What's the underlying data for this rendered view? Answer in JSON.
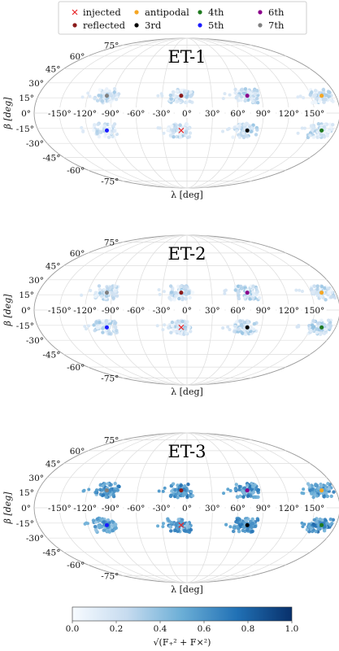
{
  "legend": {
    "position": "top-center",
    "entries": [
      {
        "label": "injected",
        "marker": "x",
        "color": "#e8262a"
      },
      {
        "label": "reflected",
        "marker": "dot",
        "color": "#8b1a1a"
      },
      {
        "label": "antipodal",
        "marker": "dot",
        "color": "#f5a623"
      },
      {
        "label": "3rd",
        "marker": "dot",
        "color": "#000000"
      },
      {
        "label": "4th",
        "marker": "dot",
        "color": "#1f7a1f"
      },
      {
        "label": "5th",
        "marker": "dot",
        "color": "#1a1aff"
      },
      {
        "label": "6th",
        "marker": "dot",
        "color": "#8b008b"
      },
      {
        "label": "7th",
        "marker": "dot",
        "color": "#808080"
      }
    ]
  },
  "colorbar": {
    "label": "√(F₊² + F×²)",
    "ticks": [
      "0.0",
      "0.2",
      "0.4",
      "0.6",
      "0.8",
      "1.0"
    ],
    "range": [
      0,
      1
    ],
    "colormap": [
      "#f7fbff",
      "#c6dbef",
      "#6baed6",
      "#2171b5",
      "#08306b"
    ]
  },
  "chart_data": [
    {
      "type": "scatter",
      "projection": "mollweide",
      "title": "ET-1",
      "xlabel": "λ [deg]",
      "ylabel": "β [deg]",
      "xlim": [
        -180,
        180
      ],
      "ylim": [
        -90,
        90
      ],
      "grid": true,
      "lon_ticks": [
        "-150°",
        "-120°",
        "-90°",
        "-60°",
        "-30°",
        "0°",
        "30°",
        "60°",
        "90°",
        "120°",
        "150°"
      ],
      "lat_ticks": [
        "75°",
        "60°",
        "45°",
        "30°",
        "15°",
        "0°",
        "-15°",
        "-30°",
        "-45°",
        "-60°",
        "-75°"
      ],
      "marked_points": [
        {
          "name": "injected",
          "lon": -7,
          "lat": -17
        },
        {
          "name": "reflected",
          "lon": -7,
          "lat": 17
        },
        {
          "name": "antipodal",
          "lon": 163,
          "lat": 17
        },
        {
          "name": "3rd",
          "lon": 73,
          "lat": -17
        },
        {
          "name": "4th",
          "lon": 163,
          "lat": -17
        },
        {
          "name": "5th",
          "lon": -97,
          "lat": -17
        },
        {
          "name": "6th",
          "lon": 73,
          "lat": 17
        },
        {
          "name": "7th",
          "lon": -97,
          "lat": 17
        }
      ],
      "clusters": [
        {
          "lon": -97,
          "lat": 17,
          "intensity": 0.18
        },
        {
          "lon": -7,
          "lat": 17,
          "intensity": 0.2
        },
        {
          "lon": 73,
          "lat": 17,
          "intensity": 0.2
        },
        {
          "lon": 163,
          "lat": 17,
          "intensity": 0.18
        },
        {
          "lon": -97,
          "lat": -17,
          "intensity": 0.18
        },
        {
          "lon": -7,
          "lat": -17,
          "intensity": 0.2
        },
        {
          "lon": 73,
          "lat": -17,
          "intensity": 0.2
        },
        {
          "lon": 163,
          "lat": -17,
          "intensity": 0.2
        }
      ]
    },
    {
      "type": "scatter",
      "projection": "mollweide",
      "title": "ET-2",
      "xlabel": "λ [deg]",
      "ylabel": "β [deg]",
      "xlim": [
        -180,
        180
      ],
      "ylim": [
        -90,
        90
      ],
      "grid": true,
      "lon_ticks": [
        "-150°",
        "-120°",
        "-90°",
        "-60°",
        "-30°",
        "0°",
        "30°",
        "60°",
        "90°",
        "120°",
        "150°"
      ],
      "lat_ticks": [
        "75°",
        "60°",
        "45°",
        "30°",
        "15°",
        "0°",
        "-15°",
        "-30°",
        "-45°",
        "-60°",
        "-75°"
      ],
      "marked_points": [
        {
          "name": "injected",
          "lon": -7,
          "lat": -17
        },
        {
          "name": "reflected",
          "lon": -7,
          "lat": 17
        },
        {
          "name": "antipodal",
          "lon": 163,
          "lat": 17
        },
        {
          "name": "3rd",
          "lon": 73,
          "lat": -17
        },
        {
          "name": "4th",
          "lon": 163,
          "lat": -17
        },
        {
          "name": "5th",
          "lon": -97,
          "lat": -17
        },
        {
          "name": "6th",
          "lon": 73,
          "lat": 17
        },
        {
          "name": "7th",
          "lon": -97,
          "lat": 17
        }
      ],
      "clusters": [
        {
          "lon": -97,
          "lat": 17,
          "intensity": 0.2
        },
        {
          "lon": -7,
          "lat": 17,
          "intensity": 0.2
        },
        {
          "lon": 73,
          "lat": 17,
          "intensity": 0.22
        },
        {
          "lon": 163,
          "lat": 17,
          "intensity": 0.2
        },
        {
          "lon": -97,
          "lat": -17,
          "intensity": 0.2
        },
        {
          "lon": -7,
          "lat": -17,
          "intensity": 0.2
        },
        {
          "lon": 73,
          "lat": -17,
          "intensity": 0.22
        },
        {
          "lon": 163,
          "lat": -17,
          "intensity": 0.22
        }
      ]
    },
    {
      "type": "scatter",
      "projection": "mollweide",
      "title": "ET-3",
      "xlabel": "λ [deg]",
      "ylabel": "β [deg]",
      "xlim": [
        -180,
        180
      ],
      "ylim": [
        -90,
        90
      ],
      "grid": true,
      "lon_ticks": [
        "-150°",
        "-120°",
        "-90°",
        "-60°",
        "-30°",
        "0°",
        "30°",
        "60°",
        "90°",
        "120°",
        "150°"
      ],
      "lat_ticks": [
        "75°",
        "60°",
        "45°",
        "30°",
        "15°",
        "0°",
        "-15°",
        "-30°",
        "-45°",
        "-60°",
        "-75°"
      ],
      "marked_points": [
        {
          "name": "injected",
          "lon": -7,
          "lat": -17
        },
        {
          "name": "reflected",
          "lon": -7,
          "lat": 17
        },
        {
          "name": "antipodal",
          "lon": 163,
          "lat": 17
        },
        {
          "name": "3rd",
          "lon": 73,
          "lat": -17
        },
        {
          "name": "4th",
          "lon": 163,
          "lat": -17
        },
        {
          "name": "5th",
          "lon": -97,
          "lat": -17
        },
        {
          "name": "6th",
          "lon": 73,
          "lat": 17
        },
        {
          "name": "7th",
          "lon": -97,
          "lat": 17
        }
      ],
      "clusters": [
        {
          "lon": -97,
          "lat": 17,
          "intensity": 0.58
        },
        {
          "lon": -7,
          "lat": 17,
          "intensity": 0.62
        },
        {
          "lon": 73,
          "lat": 17,
          "intensity": 0.58
        },
        {
          "lon": 163,
          "lat": 17,
          "intensity": 0.55
        },
        {
          "lon": -97,
          "lat": -17,
          "intensity": 0.52
        },
        {
          "lon": -7,
          "lat": -17,
          "intensity": 0.55
        },
        {
          "lon": 73,
          "lat": -17,
          "intensity": 0.58
        },
        {
          "lon": 163,
          "lat": -17,
          "intensity": 0.62
        }
      ]
    }
  ]
}
